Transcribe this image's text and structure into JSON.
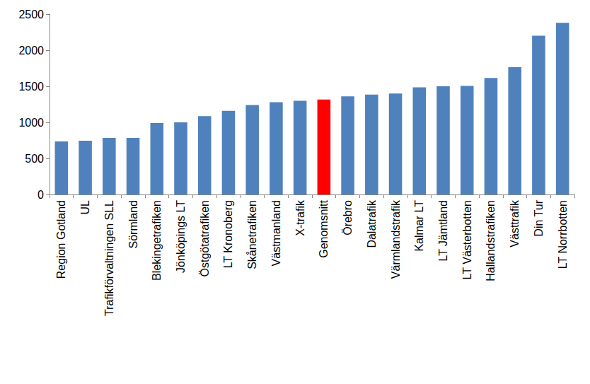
{
  "chart_data": {
    "type": "bar",
    "categories": [
      "Region Gotland",
      "UL",
      "Trafikförvaltningen SLL",
      "Sörmland",
      "Blekingetrafiken",
      "Jönköpings LT",
      "Östgötatrafiken",
      "LT Kronoberg",
      "Skånetrafiken",
      "Västmanland",
      "X-trafik",
      "Genomsnitt",
      "Örebro",
      "Dalatrafik",
      "Värmlandstrafik",
      "Kalmar LT",
      "LT Jämtland",
      "LT Västerbotten",
      "Hallandstrafiken",
      "Västtrafik",
      "Din Tur",
      "LT Norrbotten"
    ],
    "values": [
      735,
      745,
      785,
      785,
      990,
      1000,
      1085,
      1160,
      1240,
      1280,
      1300,
      1315,
      1360,
      1385,
      1400,
      1485,
      1500,
      1505,
      1615,
      1765,
      2200,
      2380
    ],
    "colors": [
      "#4f81bd",
      "#4f81bd",
      "#4f81bd",
      "#4f81bd",
      "#4f81bd",
      "#4f81bd",
      "#4f81bd",
      "#4f81bd",
      "#4f81bd",
      "#4f81bd",
      "#4f81bd",
      "#ff0000",
      "#4f81bd",
      "#4f81bd",
      "#4f81bd",
      "#4f81bd",
      "#4f81bd",
      "#4f81bd",
      "#4f81bd",
      "#4f81bd",
      "#4f81bd",
      "#4f81bd"
    ],
    "ylim": [
      0,
      2500
    ],
    "yticks": [
      0,
      500,
      1000,
      1500,
      2000,
      2500
    ],
    "grid": false
  }
}
